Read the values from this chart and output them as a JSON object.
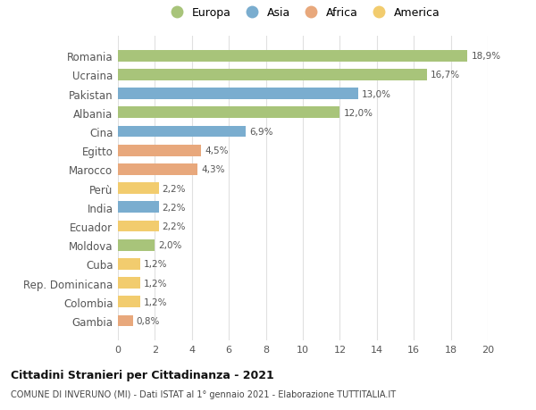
{
  "categories": [
    "Romania",
    "Ucraina",
    "Pakistan",
    "Albania",
    "Cina",
    "Egitto",
    "Marocco",
    "Perù",
    "India",
    "Ecuador",
    "Moldova",
    "Cuba",
    "Rep. Dominicana",
    "Colombia",
    "Gambia"
  ],
  "values": [
    18.9,
    16.7,
    13.0,
    12.0,
    6.9,
    4.5,
    4.3,
    2.2,
    2.2,
    2.2,
    2.0,
    1.2,
    1.2,
    1.2,
    0.8
  ],
  "continents": [
    "Europa",
    "Europa",
    "Asia",
    "Europa",
    "Asia",
    "Africa",
    "Africa",
    "America",
    "Asia",
    "America",
    "Europa",
    "America",
    "America",
    "America",
    "Africa"
  ],
  "colors": {
    "Europa": "#a8c47a",
    "Asia": "#7aadcf",
    "Africa": "#e8a87c",
    "America": "#f2cc6e"
  },
  "legend_order": [
    "Europa",
    "Asia",
    "Africa",
    "America"
  ],
  "xlim": [
    0,
    20
  ],
  "xticks": [
    0,
    2,
    4,
    6,
    8,
    10,
    12,
    14,
    16,
    18,
    20
  ],
  "title_line1": "Cittadini Stranieri per Cittadinanza - 2021",
  "title_line2": "COMUNE DI INVERUNO (MI) - Dati ISTAT al 1° gennaio 2021 - Elaborazione TUTTITALIA.IT",
  "background_color": "#ffffff",
  "grid_color": "#e0e0e0"
}
